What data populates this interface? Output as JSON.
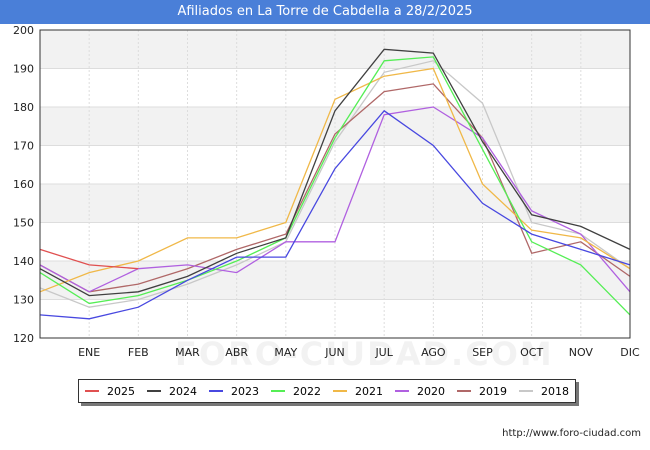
{
  "title": "Afiliados en La Torre de Cabdella a 28/2/2025",
  "footer": "http://www.foro-ciudad.com",
  "watermark": "FORO-CIUDAD.COM",
  "chart_data": {
    "type": "line",
    "title": "Afiliados en La Torre de Cabdella a 28/2/2025",
    "categories": [
      "",
      "ENE",
      "FEB",
      "MAR",
      "ABR",
      "MAY",
      "JUN",
      "JUL",
      "AGO",
      "SEP",
      "OCT",
      "NOV",
      "DIC"
    ],
    "ylim": [
      120,
      200
    ],
    "yticks": [
      120,
      130,
      140,
      150,
      160,
      170,
      180,
      190,
      200
    ],
    "grid": true,
    "legend": "bottom",
    "series": [
      {
        "name": "2025",
        "color": "#e05050",
        "values": [
          143,
          139,
          138,
          null,
          null,
          null,
          null,
          null,
          null,
          null,
          null,
          null,
          null
        ]
      },
      {
        "name": "2024",
        "color": "#404040",
        "values": [
          138,
          131,
          132,
          136,
          142,
          146,
          179,
          195,
          194,
          171,
          152,
          149,
          143
        ]
      },
      {
        "name": "2023",
        "color": "#4848e0",
        "values": [
          126,
          125,
          128,
          135,
          141,
          141,
          164,
          179,
          170,
          155,
          147,
          143,
          139
        ]
      },
      {
        "name": "2022",
        "color": "#55ee55",
        "values": [
          137,
          129,
          131,
          135,
          140,
          146,
          172,
          192,
          193,
          169,
          145,
          139,
          126
        ]
      },
      {
        "name": "2021",
        "color": "#f0b848",
        "values": [
          132,
          137,
          140,
          146,
          146,
          150,
          182,
          188,
          190,
          160,
          148,
          146,
          138
        ]
      },
      {
        "name": "2020",
        "color": "#b060e0",
        "values": [
          139,
          132,
          138,
          139,
          137,
          145,
          145,
          178,
          180,
          172,
          153,
          147,
          132
        ]
      },
      {
        "name": "2019",
        "color": "#b06868",
        "values": [
          139,
          132,
          134,
          138,
          143,
          147,
          173,
          184,
          186,
          172,
          142,
          145,
          136
        ]
      },
      {
        "name": "2018",
        "color": "#c8c8c8",
        "values": [
          133,
          128,
          130,
          134,
          139,
          145,
          171,
          189,
          192,
          181,
          150,
          147,
          138
        ]
      }
    ]
  }
}
